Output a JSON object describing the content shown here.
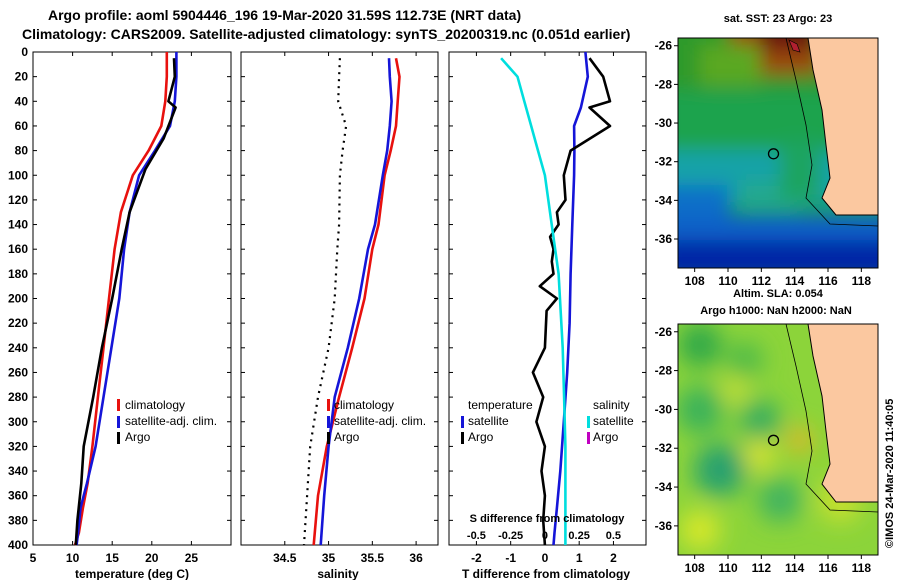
{
  "header": {
    "line1": "Argo profile: aoml 5904446_196 19-Mar-2020 31.59S 112.73E (NRT data)",
    "line2": "Climatology: CARS2009. Satellite-adjusted climatology: synTS_20200319.nc (0.051d earlier)"
  },
  "colors": {
    "climatology": "#e8110e",
    "satellite": "#1515d8",
    "argo": "#000000",
    "satellite_salinity": "#00dede",
    "argo_salinity": "#c000c0",
    "land": "#fbc8a0"
  },
  "depth_axis": {
    "ticks": [
      "0",
      "20",
      "40",
      "60",
      "80",
      "100",
      "120",
      "140",
      "160",
      "180",
      "200",
      "220",
      "240",
      "260",
      "280",
      "300",
      "320",
      "340",
      "360",
      "380",
      "400"
    ]
  },
  "chart_data": [
    {
      "type": "line",
      "id": "temperature",
      "xlabel": "temperature (deg C)",
      "ylabel": "",
      "xlim": [
        5,
        30
      ],
      "ylim": [
        400,
        0
      ],
      "xticks": [
        5,
        10,
        15,
        20,
        25
      ],
      "xtick_labels": [
        "5",
        "10",
        "15",
        "20",
        "25"
      ],
      "legend": {
        "position": "lower-right",
        "labels": [
          "climatology",
          "satellite-adj. clim.",
          "Argo"
        ]
      },
      "series": [
        {
          "name": "climatology",
          "color_key": "climatology",
          "x": [
            21.9,
            21.9,
            21.7,
            21.2,
            19.6,
            17.6,
            16.1,
            15.3,
            14.6,
            13.9,
            13.2,
            12.5,
            11.9,
            11.3,
            10.8,
            10.3
          ],
          "y": [
            0,
            20,
            40,
            60,
            80,
            100,
            130,
            160,
            200,
            240,
            280,
            320,
            350,
            370,
            390,
            400
          ]
        },
        {
          "name": "satellite-adj. clim.",
          "color_key": "satellite",
          "x": [
            23.1,
            23.1,
            22.9,
            22.3,
            20.4,
            18.4,
            17.2,
            16.5,
            15.9,
            14.9,
            13.9,
            12.9,
            11.8,
            11.0,
            10.7,
            10.5
          ],
          "y": [
            0,
            20,
            40,
            60,
            80,
            100,
            130,
            160,
            200,
            240,
            280,
            320,
            350,
            370,
            390,
            400
          ]
        },
        {
          "name": "Argo",
          "color_key": "argo",
          "x": [
            22.8,
            22.9,
            22.1,
            23.0,
            21.5,
            19.2,
            17.2,
            16.2,
            15.0,
            13.7,
            12.6,
            11.4,
            11.1,
            10.6,
            10.4
          ],
          "y": [
            5,
            20,
            40,
            45,
            70,
            95,
            130,
            160,
            200,
            240,
            280,
            320,
            350,
            380,
            400
          ]
        }
      ]
    },
    {
      "type": "line",
      "id": "salinity",
      "xlabel": "salinity",
      "ylabel": "",
      "xlim": [
        34.0,
        36.25
      ],
      "ylim": [
        400,
        0
      ],
      "xticks": [
        34.5,
        35,
        35.5,
        36
      ],
      "xtick_labels": [
        "34.5",
        "35",
        "35.5",
        "36"
      ],
      "legend": {
        "position": "lower-right",
        "labels": [
          "climatology",
          "satellite-adj. clim.",
          "Argo"
        ]
      },
      "series": [
        {
          "name": "climatology",
          "color_key": "climatology",
          "x": [
            35.77,
            35.81,
            35.79,
            35.77,
            35.71,
            35.64,
            35.57,
            35.5,
            35.41,
            35.27,
            35.12,
            34.98,
            34.88,
            34.83
          ],
          "y": [
            5,
            20,
            40,
            60,
            80,
            100,
            140,
            160,
            200,
            240,
            280,
            320,
            360,
            400
          ]
        },
        {
          "name": "satellite-adj. clim.",
          "color_key": "satellite",
          "x": [
            35.69,
            35.7,
            35.72,
            35.7,
            35.67,
            35.62,
            35.53,
            35.45,
            35.35,
            35.22,
            35.07,
            35.0,
            34.95,
            34.91
          ],
          "y": [
            5,
            20,
            40,
            60,
            80,
            100,
            140,
            160,
            200,
            240,
            280,
            320,
            360,
            400
          ]
        },
        {
          "name": "Argo",
          "color_key": "argo",
          "dotted": true,
          "x": [
            35.13,
            35.12,
            35.11,
            35.2,
            35.16,
            35.13,
            35.12,
            35.1,
            35.07,
            35.0,
            34.88,
            34.79,
            34.72
          ],
          "y": [
            5,
            20,
            40,
            60,
            80,
            100,
            140,
            160,
            200,
            240,
            280,
            320,
            400
          ]
        }
      ]
    },
    {
      "type": "line",
      "id": "difference",
      "xlabel": "T difference from climatology",
      "xlabel_top": "S difference from climatology",
      "ylabel": "",
      "xlim": [
        -2.8,
        2.95
      ],
      "ylim": [
        400,
        0
      ],
      "xticks": [
        -2,
        -1,
        0,
        1,
        2
      ],
      "xtick_labels": [
        "-2",
        "-1",
        "0",
        "1",
        "2"
      ],
      "top_xticks": [
        -0.5,
        -0.25,
        0,
        0.25,
        0.5
      ],
      "top_xtick_labels": [
        "-0.5",
        "-0.25",
        "0",
        "0.25",
        "0.5"
      ],
      "top_xlim": [
        -0.7,
        0.738
      ],
      "legend": {
        "position": "lower-center",
        "temperature_title": "temperature",
        "salinity_title": "salinity",
        "temperature_labels": [
          "satellite",
          "Argo"
        ],
        "salinity_labels": [
          "satellite",
          "Argo"
        ]
      },
      "series": [
        {
          "name": "T satellite",
          "color_key": "satellite",
          "x": [
            1.18,
            1.25,
            1.05,
            0.85,
            0.86,
            0.85,
            0.8,
            0.75,
            0.72,
            0.65,
            0.55,
            0.45,
            0.35,
            0.28,
            0.25
          ],
          "y": [
            0,
            20,
            45,
            60,
            80,
            100,
            140,
            180,
            220,
            260,
            300,
            340,
            370,
            390,
            400
          ]
        },
        {
          "name": "T Argo",
          "color_key": "argo",
          "x": [
            1.3,
            1.7,
            1.9,
            1.3,
            1.9,
            0.75,
            0.55,
            0.6,
            0.35,
            0.4,
            0.15,
            0.25,
            0.2,
            0.25,
            -0.15,
            0.35,
            0.05,
            0.0,
            -0.35,
            -0.05,
            -0.25,
            0.0,
            -0.1,
            0.0,
            -0.05,
            0.0
          ],
          "y": [
            5,
            20,
            40,
            45,
            60,
            80,
            100,
            120,
            130,
            140,
            150,
            160,
            170,
            180,
            190,
            200,
            210,
            240,
            260,
            280,
            300,
            320,
            340,
            360,
            380,
            400
          ]
        },
        {
          "name": "S satellite",
          "color_key": "satellite_salinity",
          "x": [
            -0.32,
            -0.2,
            -0.15,
            -0.1,
            -0.05,
            0.0,
            0.05,
            0.1,
            0.13,
            0.14,
            0.15,
            0.15,
            0.15
          ],
          "y": [
            5,
            20,
            40,
            60,
            80,
            100,
            140,
            180,
            240,
            280,
            320,
            360,
            400
          ],
          "axis": "top"
        }
      ]
    }
  ],
  "maps": [
    {
      "id": "sst-map",
      "title": "sat. SST: 23 Argo: 23",
      "xticks": [
        "108",
        "110",
        "112",
        "114",
        "116",
        "118"
      ],
      "yticks": [
        "-26",
        "-28",
        "-30",
        "-32",
        "-34",
        "-36"
      ],
      "xlim": [
        107,
        119
      ],
      "ylim": [
        -37.5,
        -25.6
      ]
    },
    {
      "id": "sla-map",
      "title_line1": "Altim. SLA: 0.054",
      "title_line2": "Argo h1000: NaN h2000: NaN",
      "xticks": [
        "108",
        "110",
        "112",
        "114",
        "116",
        "118"
      ],
      "yticks": [
        "-26",
        "-28",
        "-30",
        "-32",
        "-34",
        "-36"
      ],
      "xlim": [
        107,
        119
      ],
      "ylim": [
        -37.5,
        -25.6
      ]
    }
  ],
  "float_position": {
    "lon": 112.73,
    "lat": -31.59
  },
  "credit": "©IMOS 24-Mar-2020 11:40:05"
}
